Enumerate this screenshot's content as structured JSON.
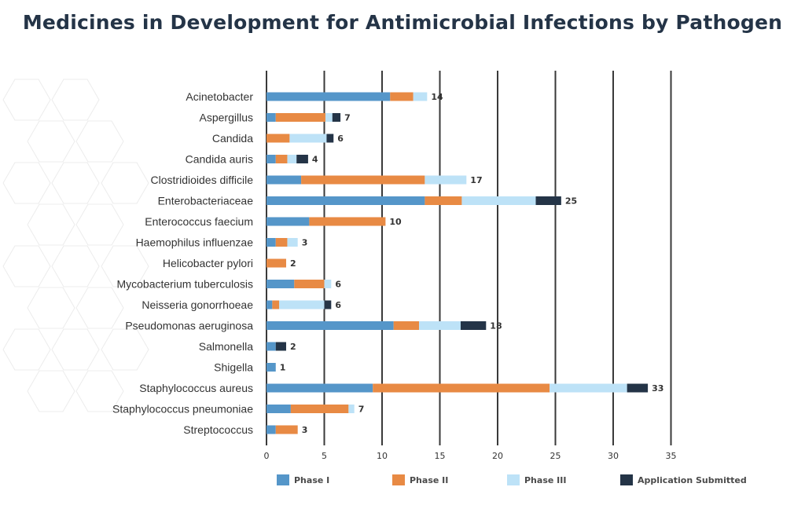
{
  "chart_data": {
    "type": "bar",
    "orientation": "horizontal",
    "stacked": true,
    "title": "Medicines in Development for Antimicrobial Infections by Pathogen",
    "xlim": [
      0,
      35
    ],
    "x_ticks": [
      "0",
      "5",
      "10",
      "15",
      "20",
      "25",
      "30",
      "35"
    ],
    "grid": true,
    "legend_position": "bottom",
    "categories": [
      "Acinetobacter",
      "Aspergillus",
      "Candida",
      "Candida auris",
      "Clostridioides difficile",
      "Enterobacteriaceae",
      "Enterococcus faecium",
      "Haemophilus influenzae",
      "Helicobacter pylori",
      "Mycobacterium tuberculosis",
      "Neisseria gonorrhoeae",
      "Pseudomonas aeruginosa",
      "Salmonella",
      "Shigella",
      "Staphylococcus aureus",
      "Staphylococcus pneumoniae",
      "Streptococcus"
    ],
    "series": [
      {
        "name": "Phase I",
        "color": "#5596c9",
        "values": [
          10.7,
          0.8,
          0,
          0.8,
          3,
          13.7,
          3.7,
          0.8,
          0,
          2.4,
          0.5,
          11,
          0.8,
          0.8,
          9.2,
          2.1,
          0.8
        ]
      },
      {
        "name": "Phase II",
        "color": "#e88a44",
        "values": [
          2,
          4.3,
          2,
          1,
          10.7,
          3.2,
          6.6,
          1,
          1.7,
          2.6,
          0.6,
          2.2,
          0,
          0,
          15.3,
          5,
          1.9
        ]
      },
      {
        "name": "Phase III",
        "color": "#bde2f7",
        "values": [
          1.2,
          0.6,
          3.2,
          0.8,
          3.6,
          6.4,
          0,
          0.9,
          0,
          0.6,
          3.9,
          3.6,
          0,
          0,
          6.7,
          0.5,
          0
        ]
      },
      {
        "name": "Application Submitted",
        "color": "#243447",
        "values": [
          0,
          0.7,
          0.6,
          1,
          0,
          2.2,
          0,
          0,
          0,
          0,
          0.6,
          2.2,
          0.9,
          0,
          1.8,
          0,
          0
        ]
      }
    ],
    "totals": [
      "14",
      "7",
      "6",
      "4",
      "17",
      "25",
      "10",
      "3",
      "2",
      "6",
      "6",
      "18",
      "2",
      "1",
      "33",
      "7",
      "3"
    ]
  },
  "colors": {
    "grid": "#3a3a3a",
    "hexagon": "#ececec",
    "title": "#243447"
  }
}
